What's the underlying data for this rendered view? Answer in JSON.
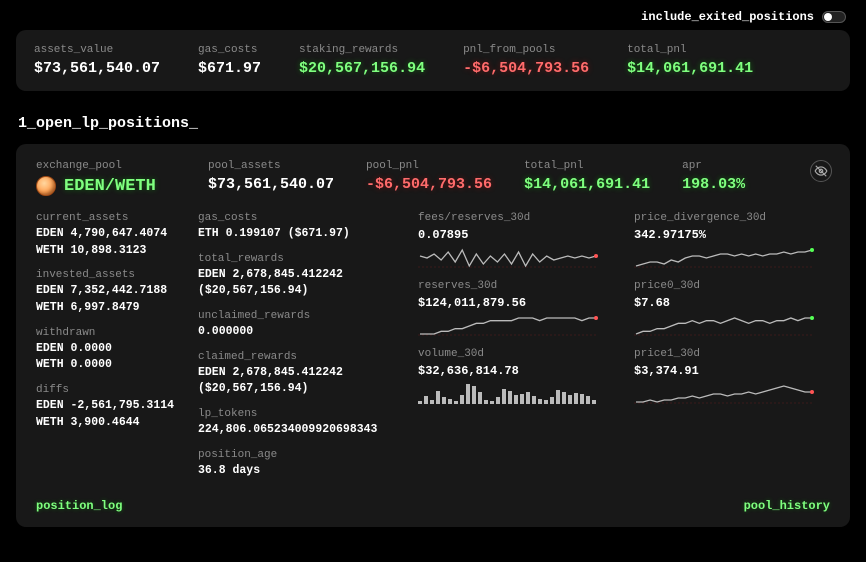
{
  "toggle": {
    "label": "include_exited_positions",
    "on": false
  },
  "top": {
    "assets_value": {
      "label": "assets_value",
      "value": "$73,561,540.07"
    },
    "gas_costs": {
      "label": "gas_costs",
      "value": "$671.97"
    },
    "staking_rewards": {
      "label": "staking_rewards",
      "value": "$20,567,156.94"
    },
    "pnl_from_pools": {
      "label": "pnl_from_pools",
      "value": "-$6,504,793.56"
    },
    "total_pnl": {
      "label": "total_pnl",
      "value": "$14,061,691.41"
    }
  },
  "section_title": "1_open_lp_positions_",
  "pool": {
    "header": {
      "exchange_pool": {
        "label": "exchange_pool",
        "pair": "EDEN/WETH"
      },
      "pool_assets": {
        "label": "pool_assets",
        "value": "$73,561,540.07"
      },
      "pool_pnl": {
        "label": "pool_pnl",
        "value": "-$6,504,793.56"
      },
      "total_pnl": {
        "label": "total_pnl",
        "value": "$14,061,691.41"
      },
      "apr": {
        "label": "apr",
        "value": "198.03%"
      }
    },
    "left": {
      "current_assets": {
        "label": "current_assets",
        "l1": "EDEN 4,790,647.4074",
        "l2": "WETH 10,898.3123"
      },
      "invested_assets": {
        "label": "invested_assets",
        "l1": "EDEN 7,352,442.7188",
        "l2": "WETH 6,997.8479"
      },
      "withdrawn": {
        "label": "withdrawn",
        "l1": "EDEN 0.0000",
        "l2": "WETH 0.0000"
      },
      "diffs": {
        "label": "diffs",
        "l1": "EDEN -2,561,795.3114",
        "l2": "WETH 3,900.4644"
      }
    },
    "mid": {
      "gas_costs": {
        "label": "gas_costs",
        "value": "ETH 0.199107 ($671.97)"
      },
      "total_rewards": {
        "label": "total_rewards",
        "l1": "EDEN 2,678,845.412242",
        "l2": "($20,567,156.94)"
      },
      "unclaimed_rewards": {
        "label": "unclaimed_rewards",
        "value": "0.000000"
      },
      "claimed_rewards": {
        "label": "claimed_rewards",
        "l1": "EDEN 2,678,845.412242",
        "l2": "($20,567,156.94)"
      },
      "lp_tokens": {
        "label": "lp_tokens",
        "value": "224,806.065234009920698343"
      },
      "position_age": {
        "label": "position_age",
        "value": "36.8 days"
      }
    },
    "charts_a": {
      "fees_reserves_30d": {
        "label": "fees/reserves_30d",
        "value": "0.07895",
        "points": [
          12,
          11,
          13,
          10,
          14,
          9,
          15,
          7,
          13,
          8,
          12,
          9,
          13,
          8,
          14,
          7,
          13,
          9,
          12,
          10,
          11,
          12,
          11,
          12,
          11,
          12
        ],
        "stroke": "#bbbbbb",
        "dot_end_color": "#ff5555"
      },
      "reserves_30d": {
        "label": "reserves_30d",
        "value": "$124,011,879.56",
        "points": [
          6,
          6,
          6,
          7,
          7,
          8,
          8,
          9,
          10,
          10,
          11,
          11,
          11,
          11,
          12,
          12,
          12,
          11,
          12,
          12,
          12,
          12,
          12,
          11,
          12,
          12
        ],
        "stroke": "#bbbbbb",
        "dot_end_color": "#ff5555"
      },
      "volume_30d": {
        "label": "volume_30d",
        "value": "$32,636,814.78",
        "bars_pct": [
          15,
          35,
          20,
          60,
          30,
          25,
          15,
          40,
          90,
          80,
          55,
          20,
          15,
          30,
          70,
          60,
          40,
          45,
          55,
          35,
          25,
          20,
          30,
          65,
          55,
          40,
          50,
          45,
          35,
          20
        ]
      }
    },
    "charts_b": {
      "price_divergence_30d": {
        "label": "price_divergence_30d",
        "value": "342.97175%",
        "points": [
          4,
          5,
          6,
          6,
          5,
          7,
          6,
          8,
          9,
          9,
          8,
          9,
          10,
          10,
          9,
          10,
          9,
          10,
          9,
          10,
          10,
          11,
          10,
          11,
          11,
          12
        ],
        "stroke": "#bbbbbb",
        "dot_end_color": "#55ff55"
      },
      "price0_30d": {
        "label": "price0_30d",
        "value": "$7.68",
        "points": [
          6,
          7,
          7,
          8,
          8,
          9,
          10,
          10,
          11,
          10,
          11,
          11,
          10,
          11,
          12,
          11,
          10,
          11,
          11,
          10,
          11,
          11,
          12,
          11,
          12,
          12
        ],
        "stroke": "#bbbbbb",
        "dot_end_color": "#55ff55"
      },
      "price1_30d": {
        "label": "price1_30d",
        "value": "$3,374.91",
        "points": [
          6,
          6,
          7,
          6,
          7,
          7,
          8,
          8,
          9,
          8,
          9,
          10,
          10,
          9,
          10,
          10,
          11,
          10,
          11,
          12,
          13,
          14,
          13,
          12,
          11,
          11
        ],
        "stroke": "#bbbbbb",
        "dot_end_color": "#ff5555"
      }
    },
    "footer": {
      "left": "position_log",
      "right": "pool_history"
    }
  },
  "colors": {
    "bg": "#000000",
    "panel": "#181818",
    "muted": "#8a8a8a",
    "green": "#7fff7f",
    "red": "#ff6b6b",
    "bar": "#bbbbbb"
  }
}
